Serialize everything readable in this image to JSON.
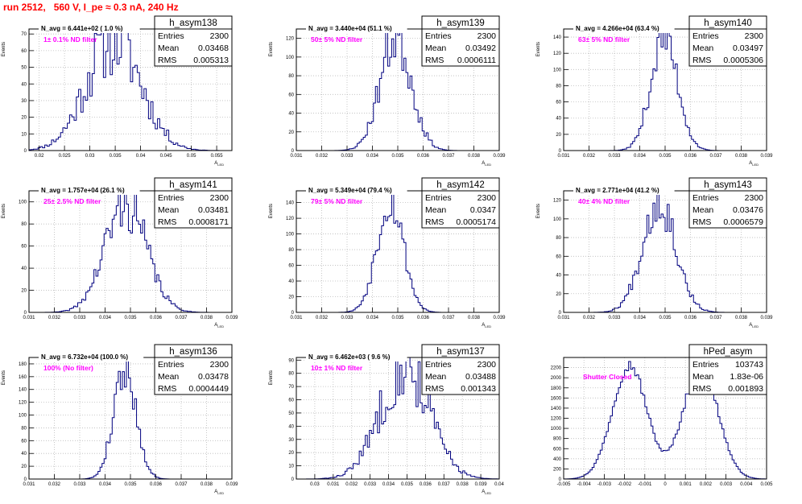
{
  "header": {
    "title": "run 2512,   560 V, I_pe ≈ 0.3 nA, 240 Hz"
  },
  "colors": {
    "title": "#ff0000",
    "annotation": "#ff00ff",
    "histogram": "#00007f",
    "grid": "#bbbbbb"
  },
  "chart_data": [
    {
      "type": "bar",
      "subtype": "histogram",
      "name": "h_asym138",
      "ylabel": "Events",
      "xlabel": "A_LED",
      "annotation": "1± 0.1% ND filter",
      "avg_text": "N_avg = 6.441e+02 ( 1.0 %)",
      "stats": {
        "entries": "2300",
        "mean": "0.03468",
        "rms": "0.005313"
      },
      "xlim": [
        0.018,
        0.058
      ],
      "ylim": [
        0,
        73
      ],
      "xticks": [
        "0.02",
        "0.025",
        "0.03",
        "0.035",
        "0.04",
        "0.045",
        "0.05",
        "0.055"
      ],
      "yticks": [
        "0",
        "10",
        "20",
        "30",
        "40",
        "50",
        "60",
        "70"
      ],
      "mean": 0.03468,
      "sigma": 0.005313,
      "peak": 68,
      "bins": 90,
      "noise": 0.35,
      "seed": 11
    },
    {
      "type": "bar",
      "subtype": "histogram",
      "name": "h_asym139",
      "ylabel": "Events",
      "xlabel": "A_LED",
      "annotation": "50± 5% ND filter",
      "avg_text": "N_avg = 3.440e+04 (51.1 %)",
      "stats": {
        "entries": "2300",
        "mean": "0.03492",
        "rms": "0.0006111"
      },
      "xlim": [
        0.031,
        0.039
      ],
      "ylim": [
        0,
        130
      ],
      "xticks": [
        "0.031",
        "0.032",
        "0.033",
        "0.034",
        "0.035",
        "0.036",
        "0.037",
        "0.038",
        "0.039"
      ],
      "yticks": [
        "0",
        "20",
        "40",
        "60",
        "80",
        "100",
        "120"
      ],
      "mean": 0.03492,
      "sigma": 0.0006111,
      "peak": 122,
      "bins": 100,
      "noise": 0.25,
      "seed": 23
    },
    {
      "type": "bar",
      "subtype": "histogram",
      "name": "h_asym140",
      "ylabel": "Events",
      "xlabel": "A_LED",
      "annotation": "63± 5% ND filter",
      "avg_text": "N_avg = 4.266e+04 (63.4 %)",
      "stats": {
        "entries": "2300",
        "mean": "0.03497",
        "rms": "0.0005306"
      },
      "xlim": [
        0.031,
        0.039
      ],
      "ylim": [
        0,
        150
      ],
      "xticks": [
        "0.031",
        "0.032",
        "0.033",
        "0.034",
        "0.035",
        "0.036",
        "0.037",
        "0.038",
        "0.039"
      ],
      "yticks": [
        "0",
        "20",
        "40",
        "60",
        "80",
        "100",
        "120",
        "140"
      ],
      "mean": 0.03497,
      "sigma": 0.0005306,
      "peak": 140,
      "bins": 100,
      "noise": 0.2,
      "seed": 37
    },
    {
      "type": "bar",
      "subtype": "histogram",
      "name": "h_asym141",
      "ylabel": "Events",
      "xlabel": "A_LED",
      "annotation": "25± 2.5% ND filter",
      "avg_text": "N_avg = 1.757e+04 (26.1 %)",
      "stats": {
        "entries": "2300",
        "mean": "0.03481",
        "rms": "0.0008171"
      },
      "xlim": [
        0.031,
        0.039
      ],
      "ylim": [
        0,
        110
      ],
      "xticks": [
        "0.031",
        "0.032",
        "0.033",
        "0.034",
        "0.035",
        "0.036",
        "0.037",
        "0.038",
        "0.039"
      ],
      "yticks": [
        "0",
        "20",
        "40",
        "60",
        "80",
        "100"
      ],
      "mean": 0.03481,
      "sigma": 0.0008171,
      "peak": 98,
      "bins": 100,
      "noise": 0.25,
      "seed": 41
    },
    {
      "type": "bar",
      "subtype": "histogram",
      "name": "h_asym142",
      "ylabel": "Events",
      "xlabel": "A_LED",
      "annotation": "79± 5% ND filter",
      "avg_text": "N_avg = 5.349e+04 (79.4 %)",
      "stats": {
        "entries": "2300",
        "mean": "0.0347",
        "rms": "0.0005174"
      },
      "xlim": [
        0.031,
        0.039
      ],
      "ylim": [
        0,
        155
      ],
      "xticks": [
        "0.031",
        "0.032",
        "0.033",
        "0.034",
        "0.035",
        "0.036",
        "0.037",
        "0.038",
        "0.039"
      ],
      "yticks": [
        "0",
        "20",
        "40",
        "60",
        "80",
        "100",
        "120",
        "140"
      ],
      "mean": 0.0347,
      "sigma": 0.0005174,
      "peak": 145,
      "bins": 100,
      "noise": 0.2,
      "seed": 53
    },
    {
      "type": "bar",
      "subtype": "histogram",
      "name": "h_asym143",
      "ylabel": "Events",
      "xlabel": "A_LED",
      "annotation": "40± 4% ND filter",
      "avg_text": "N_avg = 2.771e+04 (41.2 %)",
      "stats": {
        "entries": "2300",
        "mean": "0.03476",
        "rms": "0.0006579"
      },
      "xlim": [
        0.031,
        0.039
      ],
      "ylim": [
        0,
        130
      ],
      "xticks": [
        "0.031",
        "0.032",
        "0.033",
        "0.034",
        "0.035",
        "0.036",
        "0.037",
        "0.038",
        "0.039"
      ],
      "yticks": [
        "0",
        "20",
        "40",
        "60",
        "80",
        "100",
        "120"
      ],
      "mean": 0.03476,
      "sigma": 0.0006579,
      "peak": 120,
      "bins": 100,
      "noise": 0.22,
      "seed": 67
    },
    {
      "type": "bar",
      "subtype": "histogram",
      "name": "h_asym136",
      "ylabel": "Events",
      "xlabel": "A_LED",
      "annotation": "100% (No filter)",
      "avg_text": "N_avg = 6.732e+04 (100.0 %)",
      "stats": {
        "entries": "2300",
        "mean": "0.03478",
        "rms": "0.0004449"
      },
      "xlim": [
        0.031,
        0.039
      ],
      "ylim": [
        0,
        190
      ],
      "xticks": [
        "0.031",
        "0.032",
        "0.033",
        "0.034",
        "0.035",
        "0.036",
        "0.037",
        "0.038",
        "0.039"
      ],
      "yticks": [
        "0",
        "20",
        "40",
        "60",
        "80",
        "100",
        "120",
        "140",
        "160",
        "180"
      ],
      "mean": 0.03478,
      "sigma": 0.0004449,
      "peak": 172,
      "bins": 100,
      "noise": 0.18,
      "seed": 79
    },
    {
      "type": "bar",
      "subtype": "histogram",
      "name": "h_asym137",
      "ylabel": "Events",
      "xlabel": "A_LED",
      "annotation": "10± 1% ND filter",
      "avg_text": "N_avg = 6.462e+03 ( 9.6 %)",
      "stats": {
        "entries": "2300",
        "mean": "0.03488",
        "rms": "0.001343"
      },
      "xlim": [
        0.029,
        0.04
      ],
      "ylim": [
        0,
        92
      ],
      "xticks": [
        "0.03",
        "0.031",
        "0.032",
        "0.033",
        "0.034",
        "0.035",
        "0.036",
        "0.037",
        "0.038",
        "0.039",
        "0.04"
      ],
      "yticks": [
        "0",
        "10",
        "20",
        "30",
        "40",
        "50",
        "60",
        "70",
        "80",
        "90"
      ],
      "mean": 0.03488,
      "sigma": 0.001343,
      "peak": 86,
      "bins": 100,
      "noise": 0.3,
      "seed": 83
    },
    {
      "type": "bar",
      "subtype": "histogram",
      "name": "hPed_asym",
      "ylabel": "",
      "xlabel": "",
      "annotation": "Shutter Closed",
      "avg_text": "",
      "stats": {
        "entries": "103743",
        "mean": "1.83e-06",
        "rms": "0.001893"
      },
      "xlim": [
        -0.005,
        0.005
      ],
      "ylim": [
        0,
        2400
      ],
      "xticks": [
        "-0.005",
        "-0.004",
        "-0.003",
        "-0.002",
        "-0.001",
        "0",
        "0.001",
        "0.002",
        "0.003",
        "0.004",
        "0.005"
      ],
      "yticks": [
        "0",
        "200",
        "400",
        "600",
        "800",
        "1000",
        "1200",
        "1400",
        "1600",
        "1800",
        "2000",
        "2200"
      ],
      "mean": 0,
      "sigma": 0.0009,
      "peak": 2300,
      "bins": 100,
      "noise": 0.05,
      "seed": 97,
      "double_peak": {
        "centers": [
          -0.00175,
          0.00175
        ],
        "sigma": 0.00085,
        "peak": 2250
      }
    }
  ]
}
